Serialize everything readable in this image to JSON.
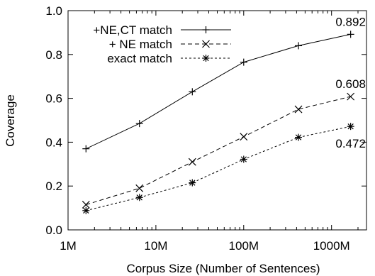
{
  "chart_data": {
    "type": "line",
    "title": "",
    "xlabel": "Corpus Size (Number of Sentences)",
    "ylabel": "Coverage",
    "x_scale": "log",
    "xlim": [
      1000000,
      2500000000
    ],
    "ylim": [
      0.0,
      1.0
    ],
    "x_ticks": [
      {
        "value": 1000000,
        "label": "1M"
      },
      {
        "value": 10000000,
        "label": "10M"
      },
      {
        "value": 100000000,
        "label": "100M"
      },
      {
        "value": 1000000000,
        "label": "1000M"
      }
    ],
    "y_ticks": [
      {
        "value": 0.0,
        "label": "0.0"
      },
      {
        "value": 0.2,
        "label": "0.2"
      },
      {
        "value": 0.4,
        "label": "0.4"
      },
      {
        "value": 0.6,
        "label": "0.6"
      },
      {
        "value": 0.8,
        "label": "0.8"
      },
      {
        "value": 1.0,
        "label": "1.0"
      }
    ],
    "grid": false,
    "legend_position": "top-left",
    "x": [
      1600000,
      6500000,
      26000000,
      100000000,
      420000000,
      1650000000
    ],
    "series": [
      {
        "name": "+NE,CT match",
        "marker": "plus",
        "dash": "solid",
        "values": [
          0.37,
          0.485,
          0.63,
          0.765,
          0.84,
          0.892
        ]
      },
      {
        "name": "+ NE match",
        "marker": "cross",
        "dash": "dashed",
        "values": [
          0.115,
          0.19,
          0.31,
          0.425,
          0.55,
          0.608
        ]
      },
      {
        "name": "exact match",
        "marker": "star",
        "dash": "dotted",
        "values": [
          0.088,
          0.148,
          0.215,
          0.322,
          0.422,
          0.472
        ]
      }
    ],
    "annotations": [
      {
        "text": "0.892",
        "series": 0
      },
      {
        "text": "0.608",
        "series": 1
      },
      {
        "text": "0.472",
        "series": 2
      }
    ]
  }
}
